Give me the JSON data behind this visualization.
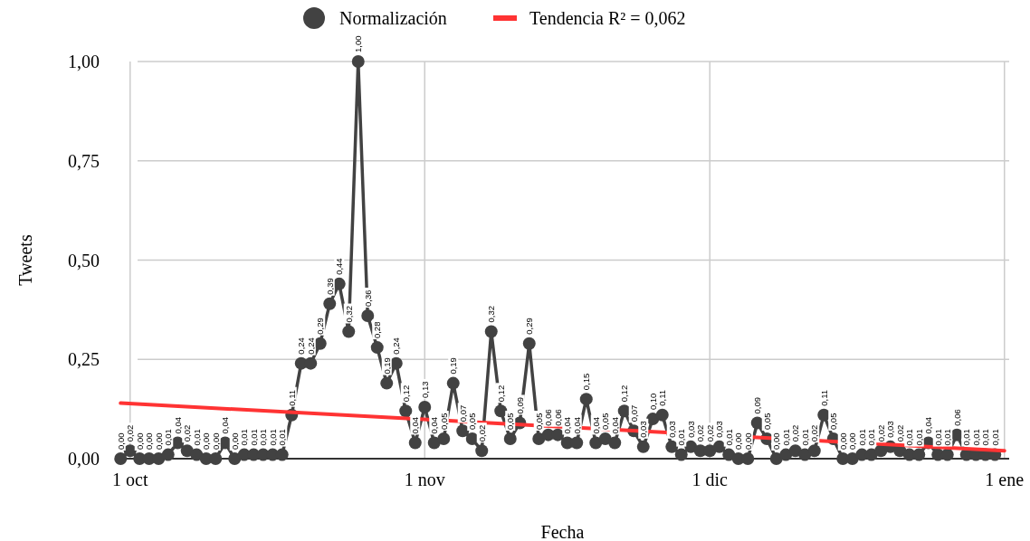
{
  "chart_data": {
    "type": "line",
    "xlabel": "Fecha",
    "ylabel": "Tweets",
    "categories": [
      null,
      "1 oct",
      null,
      null,
      null,
      null,
      null,
      null,
      null,
      null,
      null,
      null,
      null,
      null,
      null,
      null,
      null,
      null,
      null,
      null,
      null,
      null,
      null,
      null,
      null,
      null,
      null,
      null,
      null,
      null,
      null,
      null,
      "1 nov",
      null,
      null,
      null,
      null,
      null,
      null,
      null,
      null,
      null,
      null,
      null,
      null,
      null,
      null,
      null,
      null,
      null,
      null,
      null,
      null,
      null,
      null,
      null,
      null,
      null,
      null,
      null,
      null,
      null,
      "1 dic",
      null,
      null,
      null,
      null,
      null,
      null,
      null,
      null,
      null,
      null,
      null,
      null,
      null,
      null,
      null,
      null,
      null,
      null,
      null,
      null,
      null,
      null,
      null,
      null,
      null,
      null,
      null,
      null,
      null,
      null,
      "1 ene"
    ],
    "series": [
      {
        "name": "Normalización",
        "color": "#424242",
        "marker": "circle",
        "values": [
          0.0,
          0.02,
          0.0,
          0.0,
          0.0,
          0.01,
          0.04,
          0.02,
          0.01,
          0.0,
          0.0,
          0.04,
          0.0,
          0.01,
          0.01,
          0.01,
          0.01,
          0.01,
          0.11,
          0.24,
          0.24,
          0.29,
          0.39,
          0.44,
          0.32,
          1.0,
          0.36,
          0.28,
          0.19,
          0.24,
          0.12,
          0.04,
          0.13,
          0.04,
          0.05,
          0.19,
          0.07,
          0.05,
          0.02,
          0.32,
          0.12,
          0.05,
          0.09,
          0.29,
          0.05,
          0.06,
          0.06,
          0.04,
          0.04,
          0.15,
          0.04,
          0.05,
          0.04,
          0.12,
          0.07,
          0.03,
          0.1,
          0.11,
          0.03,
          0.01,
          0.03,
          0.02,
          0.02,
          0.03,
          0.01,
          0.0,
          0.0,
          0.09,
          0.05,
          0.0,
          0.01,
          0.02,
          0.01,
          0.02,
          0.11,
          0.05,
          0.0,
          0.0,
          0.01,
          0.01,
          0.02,
          0.03,
          0.02,
          0.01,
          0.01,
          0.04,
          0.01,
          0.01,
          0.06,
          0.01,
          0.01,
          0.01,
          0.01,
          null
        ],
        "value_labels": [
          "0,00",
          "0,02",
          "0,00",
          "0,00",
          "0,00",
          "0,01",
          "0,04",
          "0,02",
          "0,01",
          "0,00",
          "0,00",
          "0,04",
          "0,00",
          "0,01",
          "0,01",
          "0,01",
          "0,01",
          "0,01",
          "0,11",
          "0,24",
          "0,24",
          "0,29",
          "0,39",
          "0,44",
          "0,32",
          "1,00",
          "0,36",
          "0,28",
          "0,19",
          "0,24",
          "0,12",
          "0,04",
          "0,13",
          "0,04",
          "0,05",
          "0,19",
          "0,07",
          "0,05",
          "0,02",
          "0,32",
          "0,12",
          "0,05",
          "0,09",
          "0,29",
          "0,05",
          "0,06",
          "0,06",
          "0,04",
          "0,04",
          "0,15",
          "0,04",
          "0,05",
          "0,04",
          "0,12",
          "0,07",
          "0,03",
          "0,10",
          "0,11",
          "0,03",
          "0,01",
          "0,03",
          "0,02",
          "0,02",
          "0,03",
          "0,01",
          "0,00",
          "0,00",
          "0,09",
          "0,05",
          "0,00",
          "0,01",
          "0,02",
          "0,01",
          "0,02",
          "0,11",
          "0,05",
          "0,00",
          "0,00",
          "0,01",
          "0,01",
          "0,02",
          "0,03",
          "0,02",
          "0,01",
          "0,01",
          "0,04",
          "0,01",
          "0,01",
          "0,06",
          "0,01",
          "0,01",
          "0,01",
          "0,01",
          null
        ]
      },
      {
        "name": "Tendencia R² = 0,062",
        "color": "#ff3333",
        "marker": "none",
        "values": [
          0.14,
          null,
          null,
          null,
          null,
          null,
          null,
          null,
          null,
          null,
          null,
          null,
          null,
          null,
          null,
          null,
          null,
          null,
          null,
          null,
          null,
          null,
          null,
          null,
          null,
          null,
          null,
          null,
          null,
          null,
          null,
          null,
          null,
          null,
          null,
          null,
          null,
          null,
          null,
          null,
          null,
          null,
          null,
          null,
          null,
          null,
          null,
          null,
          null,
          null,
          null,
          null,
          null,
          null,
          null,
          null,
          null,
          null,
          null,
          null,
          null,
          null,
          null,
          null,
          null,
          null,
          null,
          null,
          null,
          null,
          null,
          null,
          null,
          null,
          null,
          null,
          null,
          null,
          null,
          null,
          null,
          null,
          null,
          null,
          null,
          null,
          null,
          null,
          null,
          null,
          null,
          null,
          null,
          0.02
        ]
      }
    ],
    "ylim": [
      0,
      1
    ],
    "yticks": [
      {
        "value": 0,
        "label": "0,00"
      },
      {
        "value": 0.25,
        "label": "0,25"
      },
      {
        "value": 0.5,
        "label": "0,50"
      },
      {
        "value": 0.75,
        "label": "0,75"
      },
      {
        "value": 1,
        "label": "1,00"
      }
    ],
    "grid": true,
    "legend": "top",
    "line_style": "solid"
  }
}
